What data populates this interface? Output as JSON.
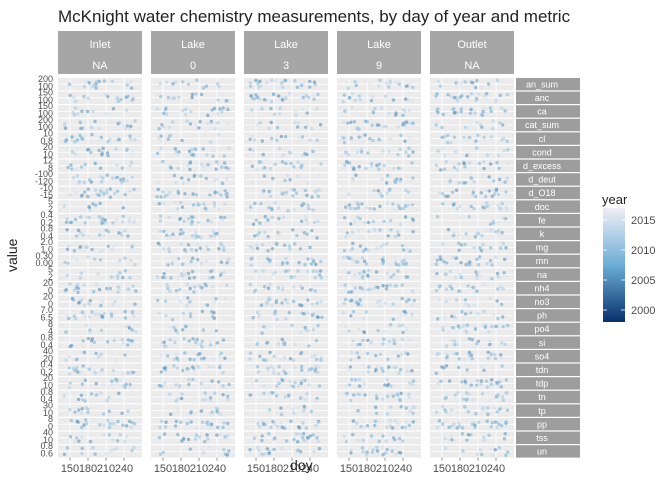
{
  "chart_data": {
    "type": "scatter",
    "title": "McKnight water chemistry measurements, by day of year and metric",
    "xlabel": "doy",
    "ylabel": "value",
    "x_ticks": [
      "150",
      "180",
      "210",
      "240"
    ],
    "xlim": [
      130,
      270
    ],
    "column_facets": [
      {
        "top": "Inlet",
        "bottom": "NA"
      },
      {
        "top": "Lake",
        "bottom": "0"
      },
      {
        "top": "Lake",
        "bottom": "3"
      },
      {
        "top": "Lake",
        "bottom": "9"
      },
      {
        "top": "Outlet",
        "bottom": "NA"
      }
    ],
    "row_facets": [
      "an_sum",
      "anc",
      "ca",
      "cat_sum",
      "cl",
      "cond",
      "d_excess",
      "d_deut",
      "d_O18",
      "doc",
      "fe",
      "k",
      "mg",
      "mn",
      "na",
      "nh4",
      "no3",
      "ph",
      "po4",
      "si",
      "so4",
      "tdn",
      "tdp",
      "tn",
      "tp",
      "pp",
      "tss",
      "un"
    ],
    "row_y_ticks": [
      [
        "200",
        "100"
      ],
      [
        "150",
        "100"
      ],
      [
        "150",
        "100"
      ],
      [
        "200",
        "100"
      ],
      [
        "10",
        "0.8"
      ],
      [
        "20",
        "10"
      ],
      [
        "12",
        "8"
      ],
      [
        "-100",
        "-120"
      ],
      [
        "-10",
        "-15"
      ],
      [
        "5",
        "2"
      ],
      [
        "0.4",
        "0.2"
      ],
      [
        "0.8",
        "0.4"
      ],
      [
        "2.0",
        "1.0"
      ],
      [
        "0.30",
        "0.00"
      ],
      [
        "5",
        "2"
      ],
      [
        "20",
        "0"
      ],
      [
        "20",
        "0"
      ],
      [
        "7.0",
        "6.5"
      ],
      [
        "8",
        "4"
      ],
      [
        "0.8",
        "0.4"
      ],
      [
        "40",
        "20"
      ],
      [
        "0.4",
        "0.2"
      ],
      [
        "20",
        "10"
      ],
      [
        "0.8",
        "0.4"
      ],
      [
        "30",
        "10"
      ],
      [
        "8",
        "0"
      ],
      [
        "40",
        "10"
      ],
      [
        "0.8",
        "0.6"
      ]
    ],
    "color_scale": {
      "title": "year",
      "ticks": [
        2000,
        2005,
        2010,
        2015
      ],
      "range": [
        1998,
        2017
      ],
      "low_color": "#08306b",
      "mid_color": "#6baed6",
      "high_color": "#efedf5"
    },
    "grid": true,
    "legend_position": "right"
  }
}
